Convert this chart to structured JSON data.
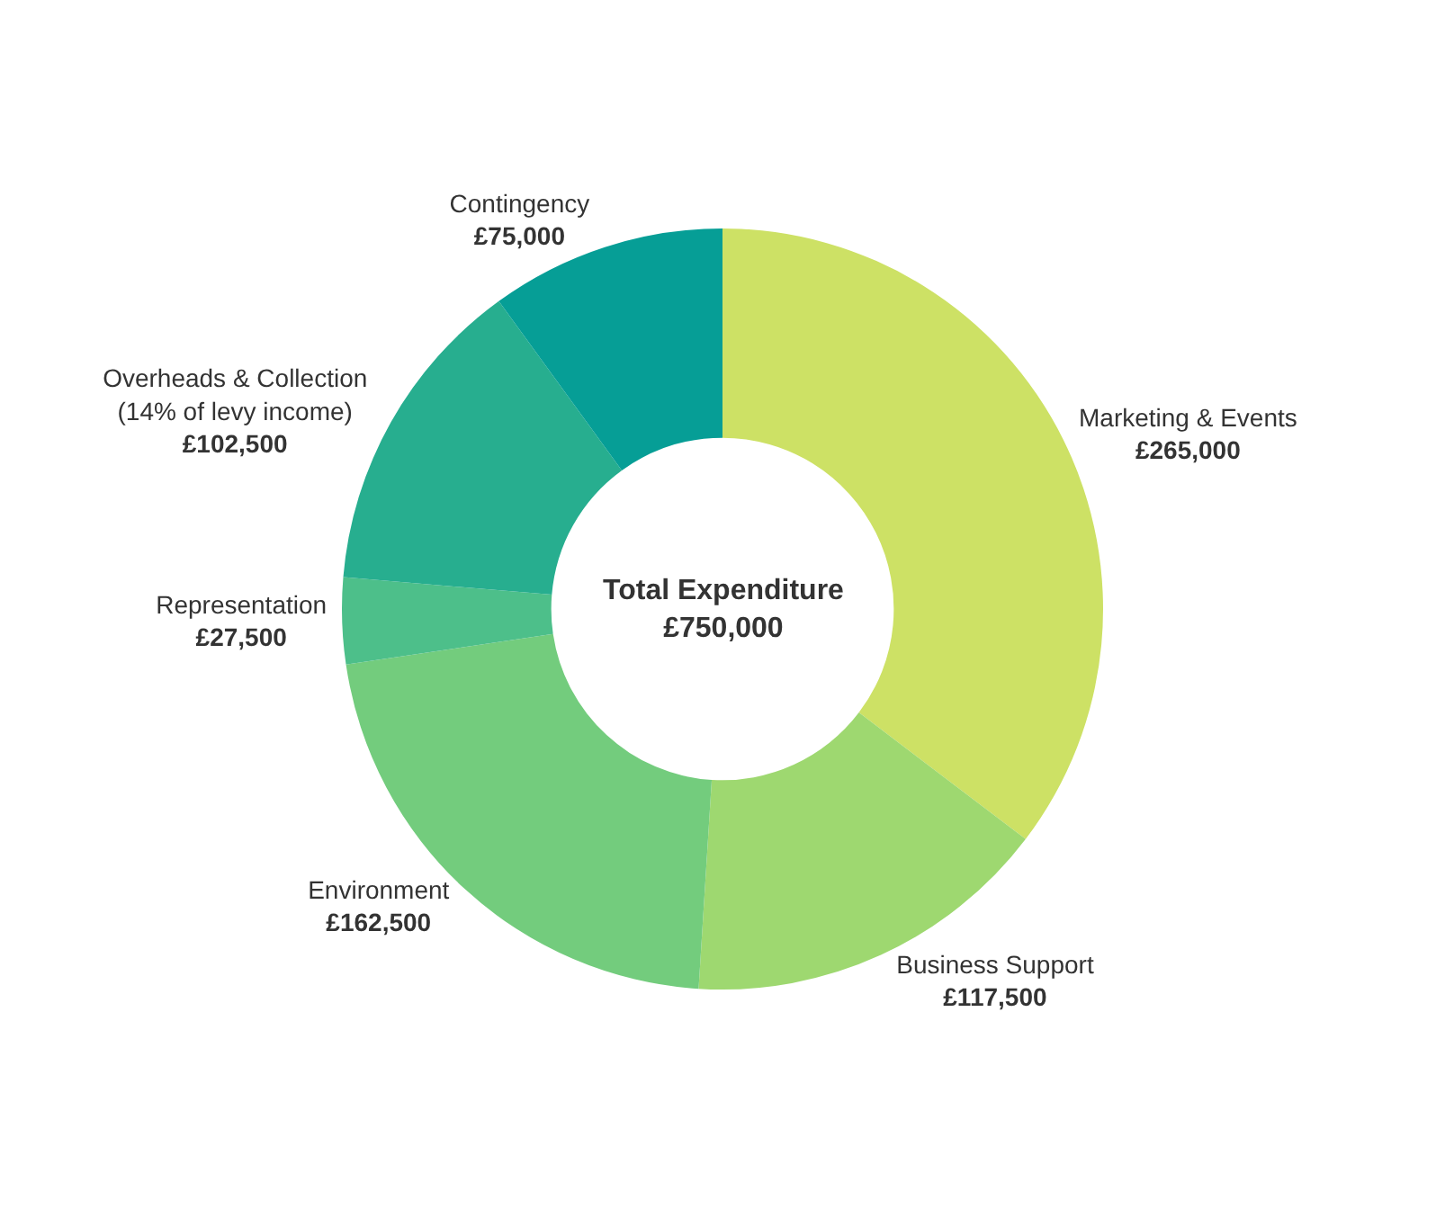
{
  "chart_data": {
    "type": "donut",
    "categories": [
      "Marketing & Events",
      "Business Support",
      "Environment",
      "Representation",
      "Overheads & Collection\n(14% of levy income)",
      "Contingency"
    ],
    "values": [
      265000,
      117500,
      162500,
      27500,
      102500,
      75000
    ],
    "value_labels": [
      "£265,000",
      "£117,500",
      "£162,500",
      "£27,500",
      "£102,500",
      "£75,000"
    ],
    "colors": [
      "#cde165",
      "#9ed870",
      "#73cc7d",
      "#4dbf8a",
      "#27ae8f",
      "#069e96"
    ],
    "annotations": [
      "Total Expenditure",
      "£750,000"
    ],
    "legend": false
  }
}
